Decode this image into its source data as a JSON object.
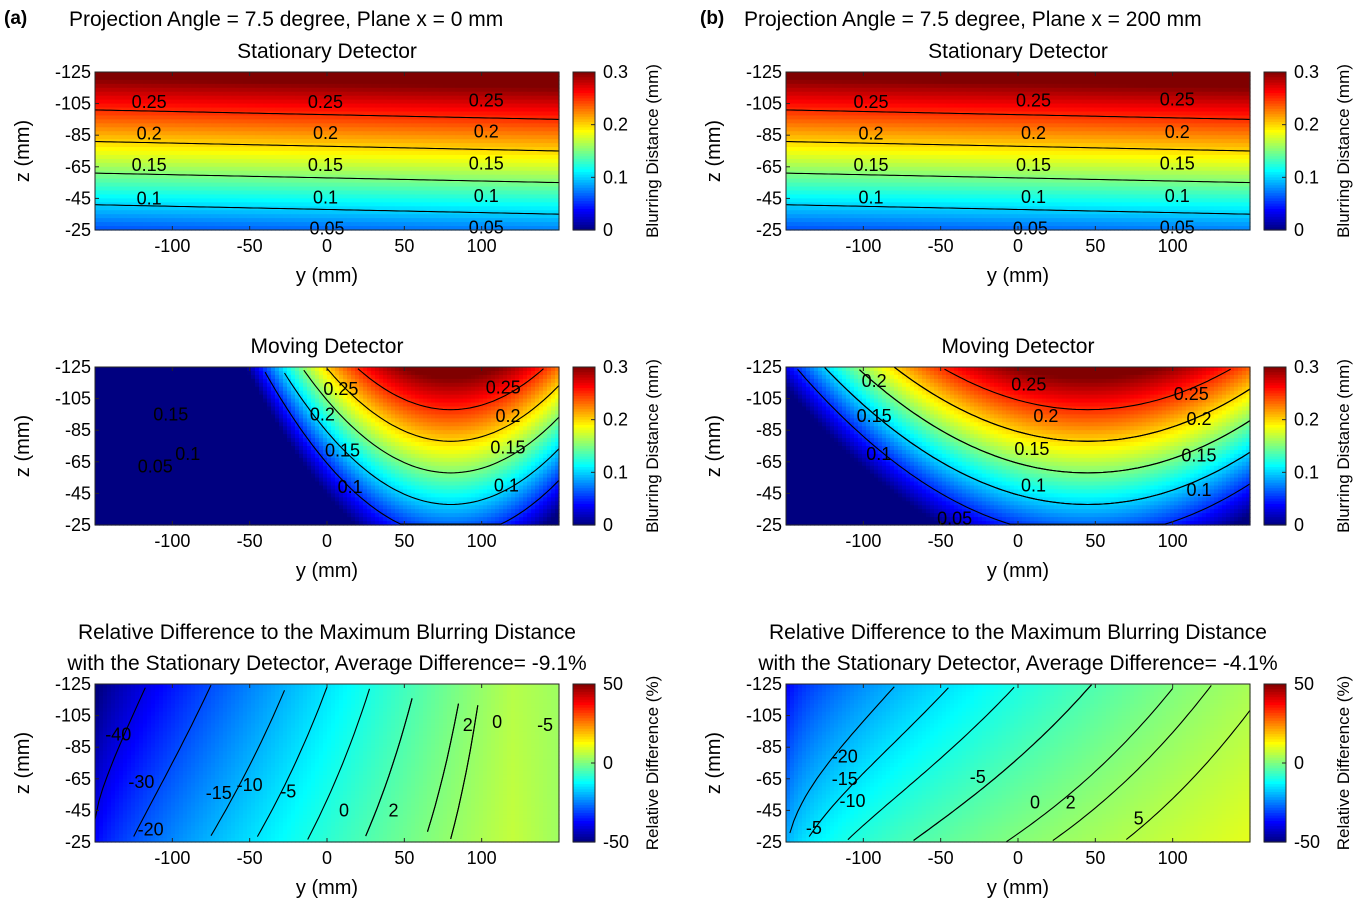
{
  "figure": {
    "panel_labels": [
      "(a)",
      "(b)"
    ],
    "column_titles": [
      "Projection Angle = 7.5 degree, Plane x = 0 mm",
      "Projection Angle = 7.5 degree, Plane x = 200 mm"
    ]
  },
  "colors": {
    "colormap": "jet",
    "contour_line": "#000000"
  },
  "chart_data": [
    {
      "id": "a1",
      "column": 0,
      "row": 0,
      "type": "heatmap",
      "title": [
        "Stationary Detector"
      ],
      "xlabel": "y (mm)",
      "ylabel": "z (mm)",
      "xticks": [
        -100,
        -50,
        0,
        50,
        100
      ],
      "yticks": [
        -125,
        -105,
        -85,
        -65,
        -45,
        -25
      ],
      "xlim": [
        -150,
        150
      ],
      "ylim": [
        -125,
        -25
      ],
      "colorbar": {
        "label": "Blurring Distance (mm)",
        "range": [
          0,
          0.3
        ],
        "ticks": [
          0,
          0.1,
          0.2,
          0.3
        ]
      },
      "model": {
        "kind": "stationary",
        "center": 0.005,
        "slope": -0.0025,
        "tilt": 5e-05
      },
      "contours": [
        {
          "label": "0.25",
          "at": [
            [
              -115,
              -106
            ],
            [
              -1,
              -106
            ],
            [
              103,
              -107
            ]
          ]
        },
        {
          "label": "0.2",
          "at": [
            [
              -115,
              -86
            ],
            [
              -1,
              -86.5
            ],
            [
              103,
              -87.5
            ]
          ]
        },
        {
          "label": "0.15",
          "at": [
            [
              -115,
              -66
            ],
            [
              -1,
              -66
            ],
            [
              103,
              -67
            ]
          ]
        },
        {
          "label": "0.1",
          "at": [
            [
              -115,
              -45
            ],
            [
              -1,
              -45.5
            ],
            [
              103,
              -46.5
            ]
          ]
        },
        {
          "label": "0.05",
          "at": [
            [
              0,
              -26
            ],
            [
              103,
              -26.5
            ]
          ]
        }
      ]
    },
    {
      "id": "a2",
      "column": 0,
      "row": 1,
      "type": "heatmap",
      "title": [
        "Moving Detector"
      ],
      "xlabel": "y (mm)",
      "ylabel": "z (mm)",
      "xticks": [
        -100,
        -50,
        0,
        50,
        100
      ],
      "yticks": [
        -125,
        -105,
        -85,
        -65,
        -45,
        -25
      ],
      "xlim": [
        -150,
        150
      ],
      "ylim": [
        -125,
        -25
      ],
      "colorbar": {
        "label": "Blurring Distance (mm)",
        "range": [
          0,
          0.3
        ],
        "ticks": [
          0,
          0.1,
          0.2,
          0.3
        ]
      },
      "model": {
        "kind": "moving",
        "center": 0.005,
        "slope": -0.0025,
        "curv": 1.8e-05,
        "vertex": 80
      },
      "contours": [
        {
          "label": "0.25",
          "at": [
            [
              9,
              -111
            ],
            [
              114,
              -112
            ]
          ]
        },
        {
          "label": "0.2",
          "at": [
            [
              -3,
              -95
            ],
            [
              117,
              -94
            ]
          ]
        },
        {
          "label": "0.15",
          "at": [
            [
              -101,
              -95
            ],
            [
              10,
              -72
            ],
            [
              117,
              -74
            ]
          ]
        },
        {
          "label": "0.1",
          "at": [
            [
              -90,
              -70
            ],
            [
              15,
              -49
            ],
            [
              116,
              -50
            ]
          ]
        },
        {
          "label": "0.05",
          "at": [
            [
              -111,
              -62
            ]
          ]
        }
      ]
    },
    {
      "id": "a3",
      "column": 0,
      "row": 2,
      "type": "heatmap",
      "title": [
        "Relative Difference to the Maximum Blurring Distance",
        "with the Stationary Detector, Average Difference= -9.1%"
      ],
      "xlabel": "y (mm)",
      "ylabel": "z (mm)",
      "xticks": [
        -100,
        -50,
        0,
        50,
        100
      ],
      "yticks": [
        -125,
        -105,
        -85,
        -65,
        -45,
        -25
      ],
      "xlim": [
        -150,
        150
      ],
      "ylim": [
        -125,
        -25
      ],
      "colorbar": {
        "label": "Relative Difference (%)",
        "range": [
          -50,
          50
        ],
        "ticks": [
          -50,
          0,
          50
        ]
      },
      "model": {
        "kind": "reldiff_a"
      },
      "contours": [
        {
          "label": "-40",
          "at": [
            [
              -135,
              -93
            ]
          ]
        },
        {
          "label": "-30",
          "at": [
            [
              -120,
              -63
            ]
          ]
        },
        {
          "label": "-20",
          "at": [
            [
              -114,
              -33
            ]
          ]
        },
        {
          "label": "-15",
          "at": [
            [
              -70,
              -56
            ]
          ]
        },
        {
          "label": "-10",
          "at": [
            [
              -50,
              -61
            ]
          ]
        },
        {
          "label": "-5",
          "at": [
            [
              -25,
              -57
            ]
          ]
        },
        {
          "label": "0",
          "at": [
            [
              11,
              -45
            ]
          ]
        },
        {
          "label": "2",
          "at": [
            [
              43,
              -45
            ]
          ]
        },
        {
          "label": "2",
          "at": [
            [
              91,
              -99
            ]
          ]
        },
        {
          "label": "0",
          "at": [
            [
              110,
              -101
            ]
          ]
        },
        {
          "label": "-5",
          "at": [
            [
              141,
              -99
            ]
          ]
        }
      ]
    },
    {
      "id": "b1",
      "column": 1,
      "row": 0,
      "type": "heatmap",
      "title": [
        "Stationary Detector"
      ],
      "xlabel": "y (mm)",
      "ylabel": "z (mm)",
      "xticks": [
        -100,
        -50,
        0,
        50,
        100
      ],
      "yticks": [
        -125,
        -105,
        -85,
        -65,
        -45,
        -25
      ],
      "xlim": [
        -150,
        150
      ],
      "ylim": [
        -125,
        -25
      ],
      "colorbar": {
        "label": "Blurring Distance (mm)",
        "range": [
          0,
          0.3
        ],
        "ticks": [
          0,
          0.1,
          0.2,
          0.3
        ]
      },
      "model": {
        "kind": "stationary",
        "center": 0.005,
        "slope": -0.0025,
        "tilt": 5e-05
      },
      "contours": [
        {
          "label": "0.25",
          "at": [
            [
              -95,
              -106
            ],
            [
              10,
              -107
            ],
            [
              103,
              -107.5
            ]
          ]
        },
        {
          "label": "0.2",
          "at": [
            [
              -95,
              -86
            ],
            [
              10,
              -86.5
            ],
            [
              103,
              -87
            ]
          ]
        },
        {
          "label": "0.15",
          "at": [
            [
              -95,
              -66
            ],
            [
              10,
              -66
            ],
            [
              103,
              -67
            ]
          ]
        },
        {
          "label": "0.1",
          "at": [
            [
              -95,
              -45.5
            ],
            [
              10,
              -46
            ],
            [
              103,
              -46.5
            ]
          ]
        },
        {
          "label": "0.05",
          "at": [
            [
              8,
              -26
            ],
            [
              103,
              -26.5
            ]
          ]
        }
      ]
    },
    {
      "id": "b2",
      "column": 1,
      "row": 1,
      "type": "heatmap",
      "title": [
        "Moving Detector"
      ],
      "xlabel": "y (mm)",
      "ylabel": "z (mm)",
      "xticks": [
        -100,
        -50,
        0,
        50,
        100
      ],
      "yticks": [
        -125,
        -105,
        -85,
        -65,
        -45,
        -25
      ],
      "xlim": [
        -150,
        150
      ],
      "ylim": [
        -125,
        -25
      ],
      "colorbar": {
        "label": "Blurring Distance (mm)",
        "range": [
          0,
          0.3
        ],
        "ticks": [
          0,
          0.1,
          0.2,
          0.3
        ]
      },
      "model": {
        "kind": "moving",
        "center": 0.005,
        "slope": -0.0025,
        "curv": 7.5e-06,
        "vertex": 45
      },
      "contours": [
        {
          "label": "0.2",
          "at": [
            [
              -93,
              -116
            ]
          ]
        },
        {
          "label": "0.25",
          "at": [
            [
              7,
              -114
            ],
            [
              112,
              -108
            ]
          ]
        },
        {
          "label": "0.15",
          "at": [
            [
              -93,
              -94
            ]
          ]
        },
        {
          "label": "0.2",
          "at": [
            [
              18,
              -94
            ],
            [
              117,
              -92
            ]
          ]
        },
        {
          "label": "0.1",
          "at": [
            [
              -90,
              -70
            ]
          ]
        },
        {
          "label": "0.15",
          "at": [
            [
              9,
              -73
            ],
            [
              117,
              -69
            ]
          ]
        },
        {
          "label": "0.1",
          "at": [
            [
              10,
              -50
            ],
            [
              117,
              -47
            ]
          ]
        },
        {
          "label": "0.05",
          "at": [
            [
              -41,
              -29
            ]
          ]
        }
      ]
    },
    {
      "id": "b3",
      "column": 1,
      "row": 2,
      "type": "heatmap",
      "title": [
        "Relative Difference to the Maximum Blurring Distance",
        "with the Stationary Detector, Average Difference= -4.1%"
      ],
      "xlabel": "y (mm)",
      "ylabel": "z (mm)",
      "xticks": [
        -100,
        -50,
        0,
        50,
        100
      ],
      "yticks": [
        -125,
        -105,
        -85,
        -65,
        -45,
        -25
      ],
      "xlim": [
        -150,
        150
      ],
      "ylim": [
        -125,
        -25
      ],
      "colorbar": {
        "label": "Relative Difference (%)",
        "range": [
          -50,
          50
        ],
        "ticks": [
          -50,
          0,
          50
        ]
      },
      "model": {
        "kind": "reldiff_b"
      },
      "contours": [
        {
          "label": "-20",
          "at": [
            [
              -112,
              -79
            ]
          ]
        },
        {
          "label": "-15",
          "at": [
            [
              -112,
              -65
            ]
          ]
        },
        {
          "label": "-10",
          "at": [
            [
              -107,
              -51
            ]
          ]
        },
        {
          "label": "-5",
          "at": [
            [
              -132,
              -34
            ]
          ]
        },
        {
          "label": "-5",
          "at": [
            [
              -26,
              -66
            ]
          ]
        },
        {
          "label": "0",
          "at": [
            [
              11,
              -50
            ]
          ]
        },
        {
          "label": "2",
          "at": [
            [
              34,
              -50
            ]
          ]
        },
        {
          "label": "5",
          "at": [
            [
              78,
              -40
            ]
          ]
        }
      ]
    }
  ]
}
